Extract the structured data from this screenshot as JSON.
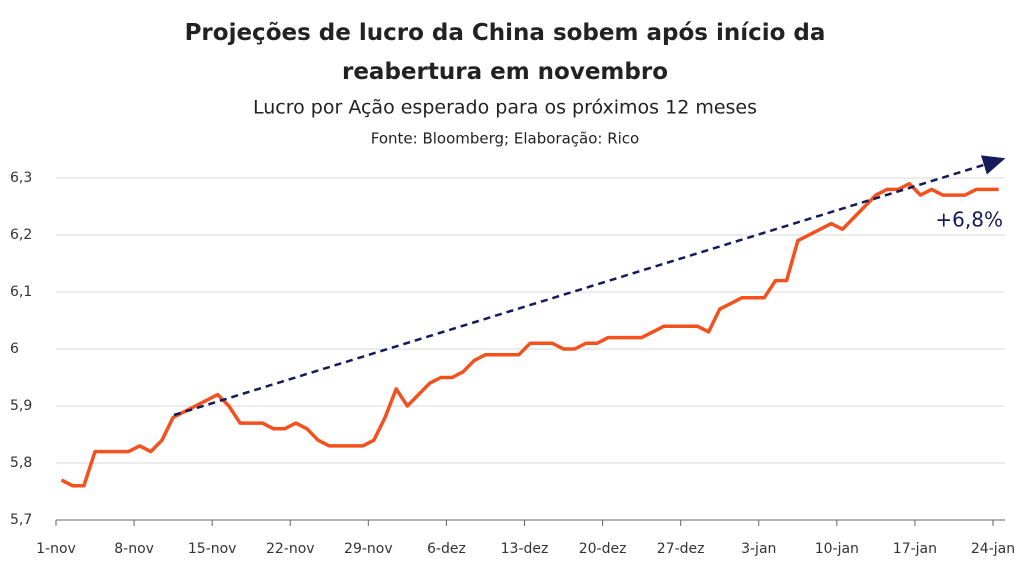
{
  "chart_data": {
    "type": "line",
    "title": "Projeções de lucro da China sobem após início da reabertura em novembro",
    "subtitle": "Lucro por Ação esperado para os próximos 12 meses",
    "source": "Fonte: Bloomberg; Elaboração: Rico",
    "annotation": "+6,8%",
    "color": "#f4511e",
    "categories": [
      "1-nov",
      null,
      null,
      null,
      null,
      null,
      null,
      "8-nov",
      null,
      null,
      null,
      null,
      null,
      null,
      "15-nov",
      null,
      null,
      null,
      null,
      null,
      null,
      "22-nov",
      null,
      null,
      null,
      null,
      null,
      null,
      "29-nov",
      null,
      null,
      null,
      null,
      null,
      null,
      "6-dez",
      null,
      null,
      null,
      null,
      null,
      null,
      "13-dez",
      null,
      null,
      null,
      null,
      null,
      null,
      "20-dez",
      null,
      null,
      null,
      null,
      null,
      null,
      "27-dez",
      null,
      null,
      null,
      null,
      null,
      null,
      "3-jan",
      null,
      null,
      null,
      null,
      null,
      null,
      "10-jan",
      null,
      null,
      null,
      null,
      null,
      null,
      "17-jan",
      null,
      null,
      null,
      null,
      null,
      null,
      "24-jan"
    ],
    "values": [
      5.77,
      5.76,
      5.76,
      5.82,
      5.82,
      5.82,
      5.82,
      5.83,
      5.82,
      5.84,
      5.88,
      5.89,
      5.9,
      5.91,
      5.92,
      5.9,
      5.87,
      5.87,
      5.87,
      5.86,
      5.86,
      5.87,
      5.86,
      5.84,
      5.83,
      5.83,
      5.83,
      5.83,
      5.84,
      5.88,
      5.93,
      5.9,
      5.92,
      5.94,
      5.95,
      5.95,
      5.96,
      5.98,
      5.99,
      5.99,
      5.99,
      5.99,
      6.01,
      6.01,
      6.01,
      6.0,
      6.0,
      6.01,
      6.01,
      6.02,
      6.02,
      6.02,
      6.02,
      6.03,
      6.04,
      6.04,
      6.04,
      6.04,
      6.03,
      6.07,
      6.08,
      6.09,
      6.09,
      6.09,
      6.12,
      6.12,
      6.19,
      6.2,
      6.21,
      6.22,
      6.21,
      6.23,
      6.25,
      6.27,
      6.28,
      6.28,
      6.29,
      6.27,
      6.28,
      6.27,
      6.27,
      6.27,
      6.28,
      6.28,
      6.28
    ],
    "ylim": [
      5.7,
      6.3
    ],
    "yticks": [
      {
        "value": 5.7,
        "label": "5,7"
      },
      {
        "value": 5.8,
        "label": "5,8"
      },
      {
        "value": 5.9,
        "label": "5,9"
      },
      6,
      {
        "value": 6.1,
        "label": "6,1"
      },
      {
        "value": 6.2,
        "label": "6,2"
      },
      {
        "value": 6.3,
        "label": "6,3"
      }
    ],
    "grid": true
  }
}
